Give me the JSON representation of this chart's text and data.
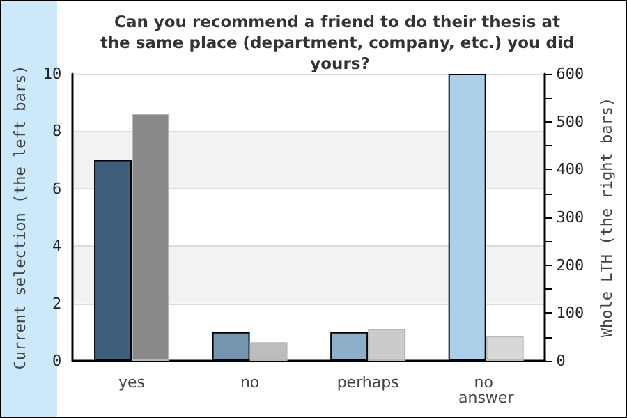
{
  "chart_data": {
    "type": "bar",
    "title": "Can you recommend a friend to do their thesis at the same place (department, company, etc.) you did yours?",
    "categories": [
      "yes",
      "no",
      "perhaps",
      "no answer"
    ],
    "series": [
      {
        "colors": [
          "#3e5f7c",
          "#7594af",
          "#8eafca",
          "#acd0ea"
        ],
        "values": [
          7,
          1,
          1,
          10
        ]
      },
      {
        "colors": [
          "#898989",
          "#bdbdbd",
          "#cbcbcb",
          "#d8d8d8"
        ],
        "values": [
          517,
          39,
          67,
          52
        ],
        "axis": "y2"
      }
    ],
    "ylabel": "Current selection (the left bars)",
    "y2label": "Whole LTH (the right bars)",
    "ylim": [
      0,
      10
    ],
    "yticks": [
      0,
      2,
      4,
      6,
      8,
      10
    ],
    "y2lim": [
      0,
      600
    ],
    "y2ticks": [
      0,
      {
        "value": 50,
        "label": null
      },
      100,
      {
        "value": 150,
        "label": null
      },
      200,
      {
        "value": 250,
        "label": null
      },
      300,
      {
        "value": 350,
        "label": null
      },
      400,
      {
        "value": 450,
        "label": null
      },
      500,
      {
        "value": 550,
        "label": null
      },
      600
    ],
    "grid": "y"
  }
}
